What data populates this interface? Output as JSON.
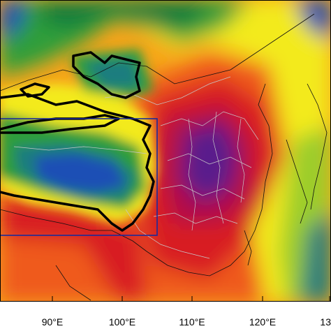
{
  "map": {
    "colors": {
      "dark_green": "#0a7a3c",
      "green": "#2f9e3a",
      "lime": "#9ccd2a",
      "yellow": "#f3ea1f",
      "orange": "#f6a41a",
      "red_orange": "#ef5a1f",
      "red": "#d81e24",
      "crimson": "#b0104a",
      "purple": "#5a1a8c",
      "indigo": "#3d1e9a",
      "blue": "#1f4fb5",
      "teal": "#1d7d7f",
      "plateau_outline": "#000000",
      "box_outline": "#1c2a9a",
      "province_border": "#c8c8c8"
    },
    "x_axis": {
      "ticks": [
        "90°E",
        "100°E",
        "110°E",
        "120°E",
        "13"
      ]
    },
    "region_box": {
      "present": true
    }
  }
}
